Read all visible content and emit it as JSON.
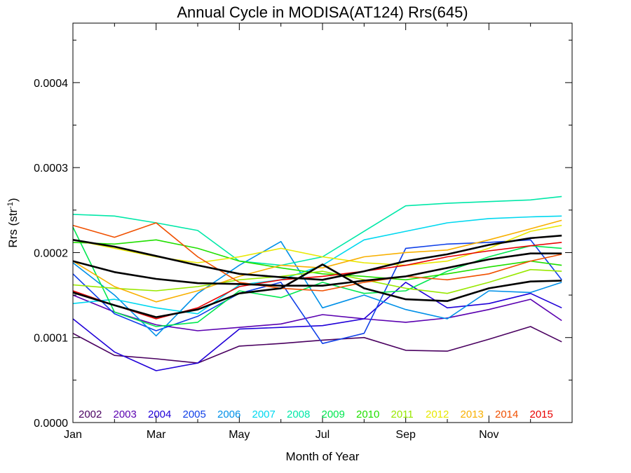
{
  "chart_data": {
    "type": "line",
    "title": "Annual Cycle in MODISA(AT124) Rrs(645)",
    "xlabel": "Month of Year",
    "ylabel": "Rrs (str",
    "ylabel_sup": "-1",
    "ylabel_close": ")",
    "xlim": [
      0,
      12
    ],
    "ylim": [
      0,
      0.00047
    ],
    "grid": false,
    "legend": "bottom-inside",
    "x_ticks": [
      {
        "value": 0,
        "label": "Jan"
      },
      {
        "value": 2,
        "label": "Mar"
      },
      {
        "value": 4,
        "label": "May"
      },
      {
        "value": 6,
        "label": "Jul"
      },
      {
        "value": 8,
        "label": "Sep"
      },
      {
        "value": 10,
        "label": "Nov"
      }
    ],
    "y_ticks": [
      {
        "value": 0,
        "label": "0.0000"
      },
      {
        "value": 0.0001,
        "label": "0.0001"
      },
      {
        "value": 0.0002,
        "label": "0.0002"
      },
      {
        "value": 0.0003,
        "label": "0.0003"
      },
      {
        "value": 0.0004,
        "label": "0.0004"
      }
    ],
    "x": [
      0,
      1,
      2,
      3,
      4,
      5,
      6,
      7,
      8,
      9,
      10,
      11,
      11.75
    ],
    "series": [
      {
        "name": "2002",
        "color": "#4a0060",
        "values": [
          0.000105,
          7.9e-05,
          7.5e-05,
          7e-05,
          9e-05,
          9.3e-05,
          9.7e-05,
          0.0001,
          8.5e-05,
          8.4e-05,
          9.8e-05,
          0.000113,
          9.5e-05
        ]
      },
      {
        "name": "2003",
        "color": "#5a00b0",
        "values": [
          0.00015,
          0.00013,
          0.000115,
          0.000108,
          0.000112,
          0.000116,
          0.000127,
          0.000122,
          0.000118,
          0.000123,
          0.000133,
          0.000145,
          0.00012
        ]
      },
      {
        "name": "2004",
        "color": "#2000d8",
        "values": [
          0.000122,
          8.3e-05,
          6.1e-05,
          7e-05,
          0.00011,
          0.000112,
          0.000114,
          0.000122,
          0.000165,
          0.000135,
          0.00014,
          0.000152,
          0.000135
        ]
      },
      {
        "name": "2005",
        "color": "#1040e8",
        "values": [
          0.000175,
          0.000128,
          0.000108,
          0.000125,
          0.000152,
          0.000165,
          9.3e-05,
          0.000105,
          0.000205,
          0.00021,
          0.000212,
          0.000215,
          0.000168
        ]
      },
      {
        "name": "2006",
        "color": "#0090e8",
        "values": [
          0.000188,
          0.00015,
          0.000102,
          0.000152,
          0.000185,
          0.000213,
          0.000135,
          0.00015,
          0.000133,
          0.000122,
          0.000155,
          0.000153,
          0.000165
        ]
      },
      {
        "name": "2007",
        "color": "#00d8f0",
        "values": [
          0.00014,
          0.000145,
          0.000135,
          0.000128,
          0.000162,
          0.000168,
          0.000185,
          0.000215,
          0.000225,
          0.000235,
          0.00024,
          0.000242,
          0.000243
        ]
      },
      {
        "name": "2008",
        "color": "#00e8a8",
        "values": [
          0.000245,
          0.000243,
          0.000235,
          0.000226,
          0.00019,
          0.000185,
          0.000195,
          0.000225,
          0.000255,
          0.000258,
          0.00026,
          0.000262,
          0.000266
        ]
      },
      {
        "name": "2009",
        "color": "#00e850",
        "values": [
          0.00023,
          0.00013,
          0.000113,
          0.000118,
          0.000155,
          0.000147,
          0.000165,
          0.000152,
          0.000155,
          0.000178,
          0.000195,
          0.000208,
          0.000205
        ]
      },
      {
        "name": "2010",
        "color": "#20e000",
        "values": [
          0.000212,
          0.00021,
          0.000215,
          0.000205,
          0.00019,
          0.000182,
          0.000175,
          0.000172,
          0.000168,
          0.000175,
          0.000183,
          0.00019,
          0.000185
        ]
      },
      {
        "name": "2011",
        "color": "#98e800",
        "values": [
          0.000162,
          0.000158,
          0.000155,
          0.00016,
          0.000168,
          0.000172,
          0.000178,
          0.000168,
          0.000158,
          0.000152,
          0.000165,
          0.00018,
          0.000178
        ]
      },
      {
        "name": "2012",
        "color": "#e8e800",
        "values": [
          0.000215,
          0.000205,
          0.000195,
          0.000188,
          0.000195,
          0.000205,
          0.000195,
          0.000188,
          0.000185,
          0.00019,
          0.000205,
          0.000225,
          0.000232
        ]
      },
      {
        "name": "2013",
        "color": "#f8b000",
        "values": [
          0.00019,
          0.00016,
          0.000142,
          0.000155,
          0.000172,
          0.000185,
          0.000182,
          0.000195,
          0.0002,
          0.000203,
          0.000215,
          0.000228,
          0.000238
        ]
      },
      {
        "name": "2014",
        "color": "#f05000",
        "values": [
          0.000232,
          0.000218,
          0.000235,
          0.000195,
          0.000165,
          0.000158,
          0.000155,
          0.000165,
          0.000172,
          0.000168,
          0.000175,
          0.00019,
          0.000198
        ]
      },
      {
        "name": "2015",
        "color": "#e80000",
        "values": [
          0.000155,
          0.000138,
          0.000122,
          0.000135,
          0.00016,
          0.000168,
          0.000172,
          0.000178,
          0.000185,
          0.000195,
          0.000202,
          0.000208,
          0.000212
        ]
      },
      {
        "color": "#000000",
        "bold": true,
        "values": [
          0.000215,
          0.000207,
          0.000196,
          0.000185,
          0.000175,
          0.000171,
          0.000168,
          0.000178,
          0.00019,
          0.000198,
          0.000209,
          0.000217,
          0.00022
        ]
      },
      {
        "color": "#000000",
        "bold": true,
        "values": [
          0.00019,
          0.000177,
          0.000169,
          0.000164,
          0.000163,
          0.000161,
          0.000161,
          0.000167,
          0.000172,
          0.000182,
          0.000192,
          0.000199,
          0.000199
        ]
      },
      {
        "color": "#000000",
        "bold": true,
        "values": [
          0.000153,
          0.000138,
          0.000124,
          0.000133,
          0.000152,
          0.000158,
          0.000186,
          0.000158,
          0.000145,
          0.000143,
          0.000158,
          0.000166,
          0.000167
        ]
      }
    ]
  }
}
